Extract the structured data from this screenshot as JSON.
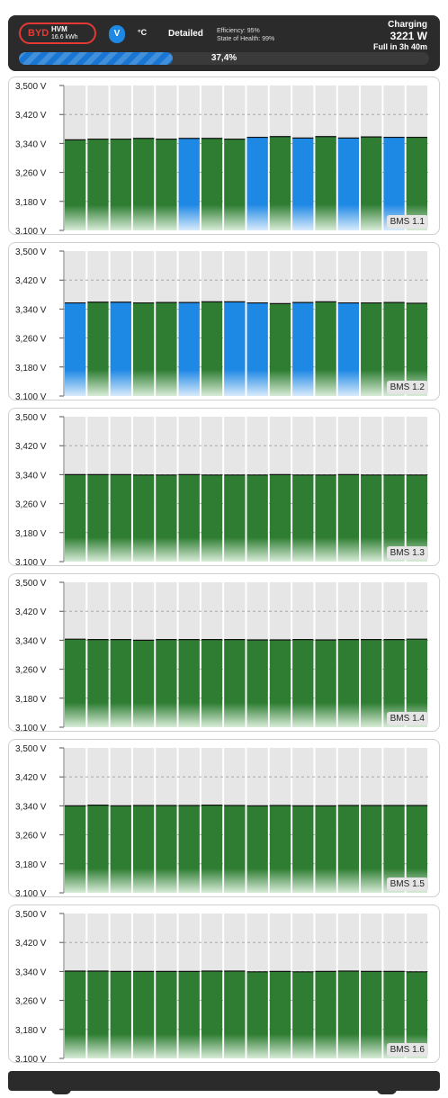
{
  "header": {
    "brand": "BYD",
    "model": "HVM",
    "capacity": "16.6 kWh",
    "unit_voltage": "V",
    "unit_temp": "°C",
    "mode": "Detailed",
    "efficiency": "Efficiency: 95%",
    "state_of_health": "State of Health: 99%",
    "status": "Charging",
    "power": "3221 W",
    "eta": "Full in 3h 40m",
    "progress_text": "37,4%",
    "progress_value": 37.4
  },
  "colors": {
    "cell_normal": "#2e7d32",
    "cell_balancing": "#1e88e5",
    "cell_background": "#e6e6e6",
    "header_bg": "#2b2b2b",
    "brand_red": "#e53935"
  },
  "chart_data": [
    {
      "type": "bar",
      "label": "BMS 1.1",
      "yticks": [
        "3,500 V",
        "3,420 V",
        "3,340 V",
        "3,260 V",
        "3,180 V",
        "3,100 V"
      ],
      "ylim": [
        3.1,
        3.5
      ],
      "values": [
        3.35,
        3.352,
        3.352,
        3.354,
        3.352,
        3.354,
        3.354,
        3.352,
        3.357,
        3.359,
        3.355,
        3.359,
        3.355,
        3.358,
        3.357,
        3.357
      ],
      "balancing": [
        false,
        false,
        false,
        false,
        false,
        true,
        false,
        false,
        true,
        false,
        true,
        false,
        true,
        false,
        true,
        false
      ]
    },
    {
      "type": "bar",
      "label": "BMS 1.2",
      "yticks": [
        "3,500 V",
        "3,420 V",
        "3,340 V",
        "3,260 V",
        "3,180 V",
        "3,100 V"
      ],
      "ylim": [
        3.1,
        3.5
      ],
      "values": [
        3.357,
        3.359,
        3.359,
        3.357,
        3.358,
        3.358,
        3.36,
        3.36,
        3.357,
        3.355,
        3.358,
        3.36,
        3.357,
        3.357,
        3.358,
        3.356
      ],
      "balancing": [
        true,
        false,
        true,
        false,
        false,
        true,
        false,
        true,
        true,
        false,
        true,
        false,
        true,
        false,
        false,
        false
      ]
    },
    {
      "type": "bar",
      "label": "BMS 1.3",
      "yticks": [
        "3,500 V",
        "3,420 V",
        "3,340 V",
        "3,260 V",
        "3,180 V",
        "3,100 V"
      ],
      "ylim": [
        3.1,
        3.5
      ],
      "values": [
        3.34,
        3.34,
        3.34,
        3.339,
        3.339,
        3.34,
        3.339,
        3.339,
        3.339,
        3.34,
        3.339,
        3.339,
        3.34,
        3.339,
        3.339,
        3.339
      ],
      "balancing": [
        false,
        false,
        false,
        false,
        false,
        false,
        false,
        false,
        false,
        false,
        false,
        false,
        false,
        false,
        false,
        false
      ]
    },
    {
      "type": "bar",
      "label": "BMS 1.4",
      "yticks": [
        "3,500 V",
        "3,420 V",
        "3,340 V",
        "3,260 V",
        "3,180 V",
        "3,100 V"
      ],
      "ylim": [
        3.1,
        3.5
      ],
      "values": [
        3.343,
        3.342,
        3.342,
        3.34,
        3.342,
        3.342,
        3.342,
        3.342,
        3.341,
        3.341,
        3.342,
        3.341,
        3.342,
        3.342,
        3.342,
        3.343
      ],
      "balancing": [
        false,
        false,
        false,
        false,
        false,
        false,
        false,
        false,
        false,
        false,
        false,
        false,
        false,
        false,
        false,
        false
      ]
    },
    {
      "type": "bar",
      "label": "BMS 1.5",
      "yticks": [
        "3,500 V",
        "3,420 V",
        "3,340 V",
        "3,260 V",
        "3,180 V",
        "3,100 V"
      ],
      "ylim": [
        3.1,
        3.5
      ],
      "values": [
        3.34,
        3.342,
        3.34,
        3.341,
        3.341,
        3.341,
        3.342,
        3.341,
        3.34,
        3.341,
        3.34,
        3.34,
        3.341,
        3.341,
        3.341,
        3.341
      ],
      "balancing": [
        false,
        false,
        false,
        false,
        false,
        false,
        false,
        false,
        false,
        false,
        false,
        false,
        false,
        false,
        false,
        false
      ]
    },
    {
      "type": "bar",
      "label": "BMS 1.6",
      "yticks": [
        "3,500 V",
        "3,420 V",
        "3,340 V",
        "3,260 V",
        "3,180 V",
        "3,100 V"
      ],
      "ylim": [
        3.1,
        3.5
      ],
      "values": [
        3.341,
        3.341,
        3.34,
        3.34,
        3.34,
        3.34,
        3.341,
        3.341,
        3.339,
        3.34,
        3.339,
        3.34,
        3.341,
        3.34,
        3.34,
        3.339
      ],
      "balancing": [
        false,
        false,
        false,
        false,
        false,
        false,
        false,
        false,
        false,
        false,
        false,
        false,
        false,
        false,
        false,
        false
      ]
    }
  ]
}
